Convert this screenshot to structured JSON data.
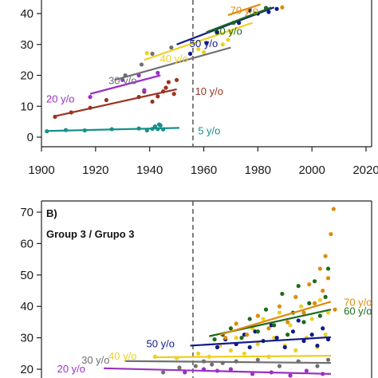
{
  "chart_data": [
    {
      "type": "scatter",
      "panel_label": "",
      "subtitle": "",
      "xlim": [
        1895,
        2025
      ],
      "ylim": [
        -1,
        42
      ],
      "x_ticks": [
        1900,
        1920,
        1940,
        1960,
        1980,
        2000,
        2020
      ],
      "y_ticks": [
        0,
        10,
        20,
        30,
        40
      ],
      "x_tick_labels": [
        "1900",
        "1920",
        "1940",
        "1960",
        "1980",
        "2000",
        "2020"
      ],
      "y_tick_labels": [
        "0",
        "10",
        "20",
        "30",
        "40"
      ],
      "reference_line_x": 1956,
      "series": [
        {
          "name": "5 y/o",
          "color": "#15918a",
          "trend": [
            [
              1902,
              2.0
            ],
            [
              1951,
              3.0
            ]
          ],
          "label_at": [
            1962,
            2.2
          ],
          "points": [
            [
              1902,
              1.9
            ],
            [
              1909,
              2.3
            ],
            [
              1916,
              2.2
            ],
            [
              1926,
              2.6
            ],
            [
              1936,
              2.8
            ],
            [
              1939,
              2.2
            ],
            [
              1941,
              2.7
            ],
            [
              1942,
              3.5
            ],
            [
              1943,
              2.6
            ],
            [
              1943.5,
              4.1
            ],
            [
              1944,
              3.8
            ],
            [
              1945,
              2.5
            ]
          ]
        },
        {
          "name": "10 y/o",
          "color": "#9b3320",
          "trend": [
            [
              1905,
              6.8
            ],
            [
              1950,
              15.5
            ]
          ],
          "label_at": [
            1962,
            15.0
          ],
          "points": [
            [
              1905,
              6.6
            ],
            [
              1911,
              8.0
            ],
            [
              1918,
              9.5
            ],
            [
              1924,
              12.0
            ],
            [
              1936,
              13.0
            ],
            [
              1938,
              14.7
            ],
            [
              1941,
              11.5
            ],
            [
              1943,
              13.2
            ],
            [
              1945,
              14.8
            ],
            [
              1946,
              16.0
            ],
            [
              1947,
              17.8
            ],
            [
              1949,
              14.0
            ],
            [
              1950,
              18.5
            ]
          ]
        },
        {
          "name": "20 y/o",
          "color": "#9b30c4",
          "trend": [
            [
              1918,
              14.0
            ],
            [
              1944,
              20.0
            ]
          ],
          "label_at": [
            1907,
            12.5
          ],
          "points": [
            [
              1918,
              13.0
            ],
            [
              1930,
              18.5
            ],
            [
              1936,
              20.0
            ],
            [
              1938,
              15.2
            ],
            [
              1943,
              20.8
            ]
          ]
        },
        {
          "name": "30 y/o",
          "color": "#707070",
          "trend": [
            [
              1927,
              18.5
            ],
            [
              1970,
              29.0
            ]
          ],
          "label_at": [
            1930,
            18.5
          ],
          "points": [
            [
              1931,
              20.0
            ],
            [
              1937,
              23.5
            ],
            [
              1941,
              27.0
            ],
            [
              1948,
              29.0
            ]
          ]
        },
        {
          "name": "40 y/o",
          "color": "#ecd11f",
          "trend": [
            [
              1938,
              25.0
            ],
            [
              1978,
              37.0
            ]
          ],
          "label_at": [
            1949,
            25.5
          ],
          "points": [
            [
              1939,
              27.2
            ],
            [
              1958,
              28.5
            ],
            [
              1960,
              27.5
            ],
            [
              1967,
              30.0
            ],
            [
              1969,
              31.5
            ],
            [
              1970,
              33.8
            ]
          ]
        },
        {
          "name": "50 y/o",
          "color": "#111a8a",
          "trend": [
            [
              1950,
              30.0
            ],
            [
              1986,
              42.0
            ]
          ],
          "label_at": [
            1960,
            30.5
          ],
          "points": [
            [
              1955,
              27.0
            ],
            [
              1961,
              30.5
            ],
            [
              1965,
              34.0
            ],
            [
              1973,
              37.0
            ],
            [
              1977,
              41.0
            ],
            [
              1980,
              40.0
            ],
            [
              1984,
              40.5
            ],
            [
              1987,
              41.5
            ]
          ]
        },
        {
          "name": "60 y/o",
          "color": "#1f6a1c",
          "trend": [
            [
              1961,
              34.0
            ],
            [
              1985,
              42.0
            ]
          ],
          "label_at": [
            1969,
            34.5
          ],
          "points": [
            [
              1971,
              37.0
            ],
            [
              1979,
              40.0
            ],
            [
              1983,
              41.8
            ]
          ]
        },
        {
          "name": "70 y/o",
          "color": "#e08a0c",
          "trend": [
            [
              1969,
              39.5
            ],
            [
              1981,
              43.0
            ]
          ],
          "label_at": [
            1975,
            41.2
          ],
          "points": [
            [
              1989,
              42.0
            ]
          ]
        }
      ]
    },
    {
      "type": "scatter",
      "panel_label": "B)",
      "subtitle": "Group 3 / Grupo 3",
      "xlim": [
        1895,
        2025
      ],
      "ylim": [
        17,
        72
      ],
      "x_ticks": [
        1900,
        1920,
        1940,
        1960,
        1980,
        2000,
        2020
      ],
      "y_ticks": [
        20,
        30,
        40,
        50,
        60,
        70
      ],
      "y_tick_labels": [
        "20",
        "30",
        "40",
        "50",
        "60",
        "70"
      ],
      "reference_line_x": 1956,
      "series": [
        {
          "name": "20 y/o",
          "color": "#9b30c4",
          "trend": [
            [
              1923,
              20.3
            ],
            [
              2007,
              18.5
            ]
          ],
          "label_at": [
            1911,
            20.3
          ],
          "points": [
            [
              1953,
              19.0
            ],
            [
              1960,
              20.0
            ],
            [
              1965,
              19.5
            ],
            [
              1970,
              20.0
            ],
            [
              1978,
              18.5
            ],
            [
              1985,
              19.0
            ],
            [
              1992,
              18.0
            ],
            [
              1998,
              19.5
            ],
            [
              2004,
              18.5
            ]
          ]
        },
        {
          "name": "30 y/o",
          "color": "#707070",
          "trend": [
            [
              1931,
              22.6
            ],
            [
              2007,
              22.0
            ]
          ],
          "label_at": [
            1920,
            23.0
          ],
          "points": [
            [
              1945,
              19.0
            ],
            [
              1951,
              20.5
            ],
            [
              1957,
              21.0
            ],
            [
              1960,
              22.5
            ],
            [
              1963,
              21.5
            ],
            [
              1967,
              22.0
            ],
            [
              1972,
              22.5
            ],
            [
              1980,
              23.0
            ],
            [
              1988,
              21.0
            ],
            [
              1995,
              22.5
            ],
            [
              2002,
              21.0
            ],
            [
              2006,
              23.0
            ]
          ]
        },
        {
          "name": "40 y/o",
          "color": "#ecd11f",
          "trend": [
            [
              1942,
              23.8
            ],
            [
              2007,
              24.3
            ]
          ],
          "label_at": [
            1930,
            24.3
          ],
          "points": [
            [
              1942,
              24.0
            ],
            [
              1950,
              23.5
            ],
            [
              1958,
              25.0
            ],
            [
              1962,
              24.0
            ],
            [
              1966,
              27.5
            ],
            [
              1970,
              26.0
            ],
            [
              1972,
              30.0
            ],
            [
              1975,
              25.0
            ],
            [
              1978,
              33.0
            ],
            [
              1980,
              28.0
            ],
            [
              1982,
              36.0
            ],
            [
              1984,
              24.0
            ],
            [
              1986,
              30.0
            ],
            [
              1988,
              38.0
            ],
            [
              1990,
              27.5
            ],
            [
              1992,
              34.0
            ],
            [
              1994,
              26.0
            ],
            [
              1996,
              40.0
            ],
            [
              1998,
              30.0
            ],
            [
              2000,
              36.0
            ],
            [
              2002,
              27.0
            ],
            [
              2003,
              42.0
            ],
            [
              2005,
              31.0
            ],
            [
              2006,
              38.0
            ]
          ]
        },
        {
          "name": "50 y/o",
          "color": "#111a8a",
          "trend": [
            [
              1955,
              27.5
            ],
            [
              2007,
              30.2
            ]
          ],
          "label_at": [
            1944,
            28.3
          ],
          "points": [
            [
              1965,
              27.0
            ],
            [
              1968,
              29.5
            ],
            [
              1972,
              28.0
            ],
            [
              1975,
              31.0
            ],
            [
              1977,
              27.0
            ],
            [
              1979,
              32.0
            ],
            [
              1982,
              29.0
            ],
            [
              1985,
              34.0
            ],
            [
              1987,
              30.0
            ],
            [
              1990,
              27.0
            ],
            [
              1993,
              32.0
            ],
            [
              1995,
              35.5
            ],
            [
              1997,
              29.0
            ],
            [
              2000,
              31.0
            ],
            [
              2002,
              27.5
            ],
            [
              2004,
              33.0
            ],
            [
              2006,
              29.5
            ]
          ]
        },
        {
          "name": "60 y/o",
          "color": "#1f6a1c",
          "trend": [
            [
              1962,
              30.5
            ],
            [
              2007,
              39.0
            ]
          ],
          "label_at": [
            2017,
            38.6
          ],
          "points": [
            [
              1964,
              29.5
            ],
            [
              1967,
              31.0
            ],
            [
              1970,
              33.0
            ],
            [
              1974,
              30.0
            ],
            [
              1977,
              36.0
            ],
            [
              1980,
              32.0
            ],
            [
              1983,
              39.0
            ],
            [
              1986,
              34.0
            ],
            [
              1989,
              44.0
            ],
            [
              1991,
              31.0
            ],
            [
              1993,
              38.0
            ],
            [
              1995,
              46.5
            ],
            [
              1997,
              35.0
            ],
            [
              1999,
              41.0
            ],
            [
              2001,
              48.0
            ],
            [
              2003,
              37.0
            ],
            [
              2005,
              43.0
            ],
            [
              2006,
              52.0
            ]
          ]
        },
        {
          "name": "70 y/o",
          "color": "#e08a0c",
          "trend": [
            [
              1966,
              31.0
            ],
            [
              2007,
              41.5
            ]
          ],
          "label_at": [
            2017,
            41.5
          ],
          "points": [
            [
              1968,
              30.0
            ],
            [
              1972,
              34.5
            ],
            [
              1976,
              31.0
            ],
            [
              1980,
              37.0
            ],
            [
              1984,
              33.0
            ],
            [
              1988,
              40.0
            ],
            [
              1991,
              35.0
            ],
            [
              1994,
              43.0
            ],
            [
              1997,
              38.0
            ],
            [
              1999,
              47.0
            ],
            [
              2001,
              41.0
            ],
            [
              2003,
              52.0
            ],
            [
              2004,
              45.0
            ],
            [
              2005,
              56.0
            ],
            [
              2006,
              49.0
            ],
            [
              2007,
              63.0
            ],
            [
              2008,
              71.0
            ],
            [
              2008.5,
              39.0
            ]
          ]
        }
      ]
    }
  ]
}
